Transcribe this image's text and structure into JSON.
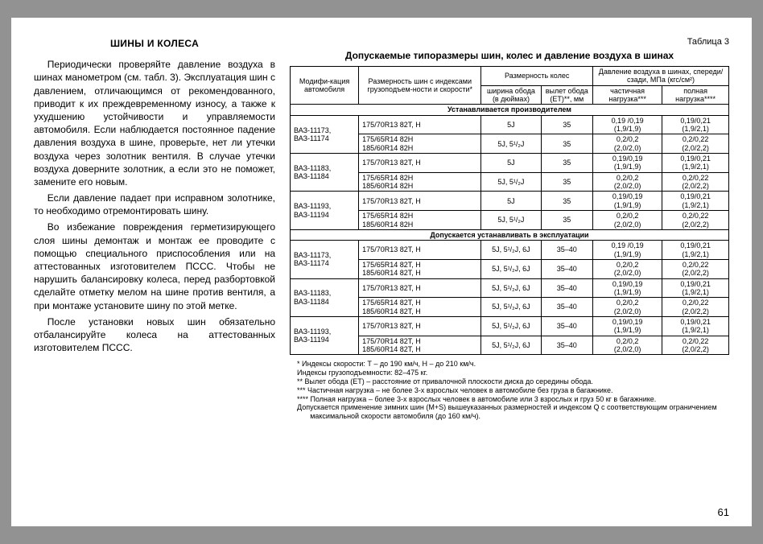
{
  "left": {
    "title": "ШИНЫ И КОЛЕСА",
    "p1": "Периодически проверяйте давление воздуха в шинах манометром (см. табл. 3). Эксплуатация шин с давлением, отличающимся от рекомендованного, приводит к их преждевременному износу, а также к ухудшению устойчивости и управляемости автомобиля. Если наблюдается постоянное падение давления воздуха в шине, проверьте, нет ли утечки воздуха через золотник вентиля. В случае утечки воздуха доверните золотник, а если это не поможет, замените его новым.",
    "p2": "Если давление падает при исправном золотнике, то необходимо отремонтировать шину.",
    "p3": "Во избежание повреждения герметизирующего слоя шины демонтаж и монтаж ее проводите с помощью специального приспособления или на аттестованных изготовителем ПССС. Чтобы не нарушить балансировку колеса, перед разбортовкой сделайте отметку мелом на шине против вентиля, а при монтаже установите шину по этой метке.",
    "p4": "После установки новых шин обязательно отбалансируйте колеса на аттестованных изготовителем ПССС."
  },
  "table": {
    "number": "Таблица 3",
    "title": "Допускаемые типоразмеры шин, колес и давление воздуха в шинах",
    "headers": {
      "col1": "Модифи-кация автомобиля",
      "col2": "Размерность шин с индексами грузоподъем-ности и скорости*",
      "col3": "Размерность колес",
      "col3a": "ширина обода (в дюймах)",
      "col3b": "вылет обода (ЕТ)**, мм",
      "col4": "Давление воздуха в шинах, спереди/сзади, МПа (кгс/см²)",
      "col4a": "частичная нагрузка***",
      "col4b": "полная нагрузка****"
    },
    "section1": "Устанавливается производителем",
    "section2": "Допускается устанавливать в эксплуатации",
    "rows_s1": [
      {
        "m": "ВАЗ-11173,\nВАЗ-11174",
        "t": "175/70R13 82T, H",
        "w": "5J",
        "e": "35",
        "p1": "0,19 /0,19\n(1,9/1,9)",
        "p2": "0,19/0,21\n(1,9/2,1)"
      },
      {
        "m": "",
        "t": "175/65R14 82H\n185/60R14 82H",
        "w": "5J, 5¹/₂J",
        "e": "35",
        "p1": "0,2/0,2\n(2,0/2,0)",
        "p2": "0,2/0,22\n(2,0/2,2)"
      },
      {
        "m": "ВАЗ-11183,\nВАЗ-11184",
        "t": "175/70R13 82T, H",
        "w": "5J",
        "e": "35",
        "p1": "0,19/0,19\n(1,9/1,9)",
        "p2": "0,19/0,21\n(1,9/2,1)"
      },
      {
        "m": "",
        "t": "175/65R14 82H\n185/60R14 82H",
        "w": "5J, 5¹/₂J",
        "e": "35",
        "p1": "0,2/0,2\n(2,0/2,0)",
        "p2": "0,2/0,22\n(2,0/2,2)"
      },
      {
        "m": "ВАЗ-11193,\nВАЗ-11194",
        "t": "175/70R13 82T, H",
        "w": "5J",
        "e": "35",
        "p1": "0,19/0,19\n(1,9/1,9)",
        "p2": "0,19/0,21\n(1,9/2,1)"
      },
      {
        "m": "",
        "t": "175/65R14 82H\n185/60R14 82H",
        "w": "5J, 5¹/₂J",
        "e": "35",
        "p1": "0,2/0,2\n(2,0/2,0)",
        "p2": "0,2/0,22\n(2,0/2,2)"
      }
    ],
    "rows_s2": [
      {
        "m": "ВАЗ-11173,\nВАЗ-11174",
        "t": "175/70R13 82T, H",
        "w": "5J, 5¹/₂J, 6J",
        "e": "35–40",
        "p1": "0,19 /0,19\n(1,9/1,9)",
        "p2": "0,19/0,21\n(1,9/2,1)"
      },
      {
        "m": "",
        "t": "175/65R14 82T, H\n185/60R14 82T, H",
        "w": "5J, 5¹/₂J, 6J",
        "e": "35–40",
        "p1": "0,2/0,2\n(2,0/2,0)",
        "p2": "0,2/0,22\n(2,0/2,2)"
      },
      {
        "m": "ВАЗ-11183,\nВАЗ-11184",
        "t": "175/70R13 82T, H",
        "w": "5J, 5¹/₂J, 6J",
        "e": "35–40",
        "p1": "0,19/0,19\n(1,9/1,9)",
        "p2": "0,19/0,21\n(1,9/2,1)"
      },
      {
        "m": "",
        "t": "175/65R14 82T, H\n185/60R14 82T, H",
        "w": "5J, 5¹/₂J, 6J",
        "e": "35–40",
        "p1": "0,2/0,2\n(2,0/2,0)",
        "p2": "0,2/0,22\n(2,0/2,2)"
      },
      {
        "m": "ВАЗ-11193,\nВАЗ-11194",
        "t": "175/70R13 82T, H",
        "w": "5J, 5¹/₂J, 6J",
        "e": "35–40",
        "p1": "0,19/0,19\n(1,9/1,9)",
        "p2": "0,19/0,21\n(1,9/2,1)"
      },
      {
        "m": "",
        "t": "175/70R14 82T, H\n185/60R14 82T, H",
        "w": "5J, 5¹/₂J, 6J",
        "e": "35–40",
        "p1": "0,2/0,2\n(2,0/2,0)",
        "p2": "0,2/0,22\n(2,0/2,2)"
      }
    ],
    "footnotes": [
      "*   Индексы скорости: Т – до 190 км/ч, Н – до 210 км/ч.",
      "     Индексы грузоподъемности: 82–475 кг.",
      "**  Вылет обода (ЕТ) – расстояние от привалочной плоскости диска до середины обода.",
      "*** Частичная нагрузка – не более 3-х взрослых человек в автомобиле без груза в багажнике.",
      "**** Полная нагрузка – более 3-х взрослых человек в автомобиле или 3 взрослых и груз 50 кг в багажнике.",
      "     Допускается применение зимних шин (M+S) вышеуказанных размерностей и индексом Q с соответствующим ограничением максимальной скорости автомобиля (до 160 км/ч)."
    ]
  },
  "pagenum": "61"
}
